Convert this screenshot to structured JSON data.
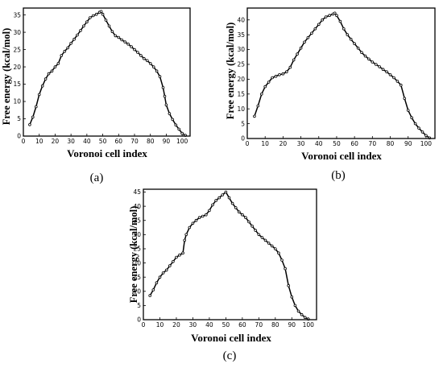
{
  "chart_data": [
    {
      "type": "line",
      "panel_label": "(a)",
      "xlabel": "Voronoi cell index",
      "ylabel": "Free energy (kcal/mol)",
      "xlim": [
        0,
        105
      ],
      "ylim": [
        0,
        37
      ],
      "xticks": [
        0,
        10,
        20,
        30,
        40,
        50,
        60,
        70,
        80,
        90,
        100
      ],
      "yticks": [
        0,
        5,
        10,
        15,
        20,
        25,
        30,
        35
      ],
      "x": [
        4,
        6,
        8,
        10,
        12,
        14,
        16,
        18,
        20,
        22,
        24,
        26,
        28,
        30,
        32,
        34,
        36,
        38,
        40,
        42,
        44,
        46,
        48,
        49,
        50,
        52,
        54,
        56,
        58,
        60,
        62,
        64,
        66,
        68,
        70,
        72,
        74,
        76,
        78,
        80,
        82,
        84,
        86,
        88,
        89,
        90,
        92,
        94,
        96,
        98,
        100,
        102
      ],
      "y": [
        3.3,
        5.5,
        8.5,
        12.0,
        14.5,
        16.5,
        18.0,
        18.8,
        20.0,
        21.0,
        23.3,
        24.5,
        25.5,
        26.8,
        28.0,
        29.2,
        30.5,
        31.8,
        33.0,
        34.2,
        34.8,
        35.2,
        35.8,
        36.0,
        35.2,
        33.5,
        31.8,
        30.2,
        29.0,
        28.5,
        27.8,
        27.2,
        26.6,
        25.8,
        25.0,
        24.2,
        23.3,
        22.4,
        21.8,
        21.0,
        20.0,
        18.8,
        17.2,
        14.0,
        11.5,
        9.0,
        6.5,
        4.8,
        3.2,
        2.0,
        0.8,
        0.2
      ]
    },
    {
      "type": "line",
      "panel_label": "(b)",
      "xlabel": "Voronoi cell index",
      "ylabel": "Free energy (kcal/mol)",
      "xlim": [
        0,
        105
      ],
      "ylim": [
        0,
        44
      ],
      "xticks": [
        0,
        10,
        20,
        30,
        40,
        50,
        60,
        70,
        80,
        90,
        100
      ],
      "yticks": [
        0,
        5,
        10,
        15,
        20,
        25,
        30,
        35,
        40
      ],
      "x": [
        4,
        6,
        8,
        10,
        12,
        14,
        16,
        18,
        20,
        22,
        24,
        26,
        28,
        30,
        32,
        34,
        36,
        38,
        40,
        42,
        44,
        46,
        48,
        49,
        50,
        52,
        54,
        56,
        58,
        60,
        62,
        64,
        66,
        68,
        70,
        72,
        74,
        76,
        78,
        80,
        82,
        84,
        86,
        88,
        90,
        92,
        94,
        96,
        98,
        100,
        102
      ],
      "y": [
        7.5,
        11.0,
        15.0,
        17.5,
        19.0,
        20.5,
        21.0,
        21.5,
        21.8,
        22.5,
        24.0,
        26.5,
        28.5,
        30.5,
        32.5,
        34.0,
        35.5,
        37.0,
        38.5,
        40.0,
        41.0,
        41.5,
        42.0,
        42.3,
        41.5,
        39.5,
        37.0,
        35.0,
        33.5,
        32.0,
        30.5,
        29.0,
        27.8,
        26.8,
        25.8,
        25.0,
        24.2,
        23.3,
        22.5,
        21.5,
        20.5,
        19.3,
        18.0,
        13.5,
        9.5,
        7.0,
        5.0,
        3.5,
        2.2,
        1.0,
        0.2
      ]
    },
    {
      "type": "line",
      "panel_label": "(c)",
      "xlabel": "Voronoi cell index",
      "ylabel": "Free energy (kcal/mol)",
      "xlim": [
        0,
        105
      ],
      "ylim": [
        0,
        46
      ],
      "xticks": [
        0,
        10,
        20,
        30,
        40,
        50,
        60,
        70,
        80,
        90,
        100
      ],
      "yticks": [
        0,
        5,
        10,
        15,
        20,
        25,
        30,
        35,
        40,
        45
      ],
      "x": [
        4,
        6,
        8,
        10,
        12,
        14,
        16,
        18,
        20,
        22,
        24,
        25,
        26,
        28,
        30,
        32,
        34,
        36,
        38,
        40,
        42,
        44,
        46,
        48,
        50,
        52,
        54,
        56,
        58,
        60,
        62,
        64,
        66,
        68,
        70,
        72,
        74,
        76,
        78,
        80,
        82,
        84,
        86,
        88,
        90,
        92,
        94,
        96,
        98,
        100
      ],
      "y": [
        8.5,
        10.5,
        13.0,
        15.0,
        16.5,
        17.5,
        19.0,
        20.5,
        22.0,
        22.8,
        23.5,
        28.0,
        30.0,
        32.5,
        34.0,
        35.0,
        36.0,
        36.5,
        37.0,
        38.5,
        40.5,
        42.0,
        43.0,
        44.0,
        45.0,
        43.0,
        41.0,
        39.5,
        38.0,
        37.0,
        36.0,
        34.5,
        33.0,
        31.5,
        30.0,
        29.0,
        28.0,
        27.0,
        26.0,
        25.0,
        23.5,
        21.0,
        18.0,
        12.0,
        8.0,
        5.0,
        3.0,
        1.8,
        0.8,
        0.2
      ]
    }
  ]
}
